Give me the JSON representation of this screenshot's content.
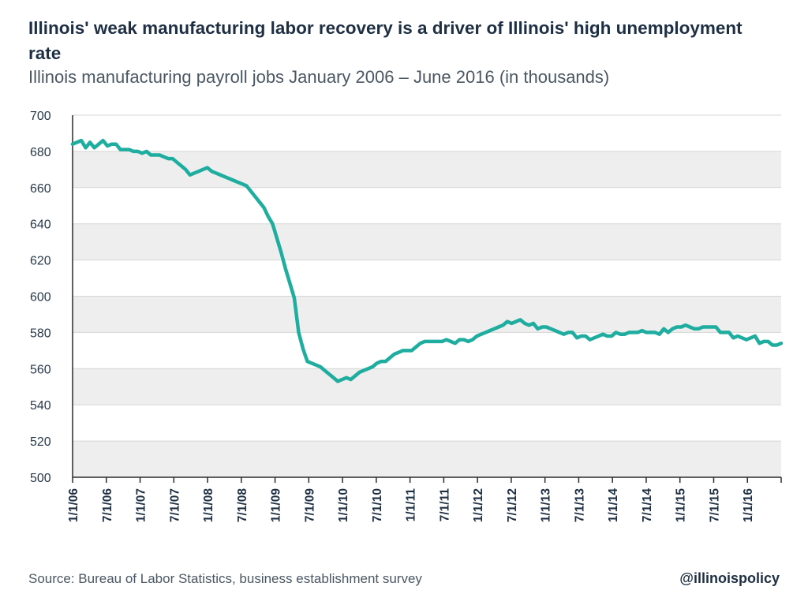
{
  "header": {
    "title": "Illinois' weak manufacturing labor recovery is a driver of Illinois' high unemployment rate",
    "subtitle": "Illinois manufacturing payroll jobs January 2006 – June 2016 (in thousands)"
  },
  "footer": {
    "source": "Source: Bureau of Labor Statistics, business establishment survey",
    "handle": "@illinoispolicy"
  },
  "colors": {
    "line": "#1fada0",
    "band": "#eeeeee",
    "axis": "#2b2b2b"
  },
  "chart_data": {
    "type": "line",
    "title": "Illinois' weak manufacturing labor recovery is a driver of Illinois' high unemployment rate",
    "subtitle": "Illinois manufacturing payroll jobs January 2006 – June 2016 (in thousands)",
    "xlabel": "",
    "ylabel": "",
    "ylim": [
      500,
      700
    ],
    "yticks": [
      500,
      520,
      540,
      560,
      580,
      600,
      620,
      640,
      660,
      680,
      700
    ],
    "xtick_labels": [
      "1/1/06",
      "7/1/06",
      "1/1/07",
      "7/1/07",
      "1/1/08",
      "7/1/08",
      "1/1/09",
      "7/1/09",
      "1/1/10",
      "7/1/10",
      "1/1/11",
      "7/1/11",
      "1/1/12",
      "7/1/12",
      "1/1/13",
      "7/1/13",
      "1/1/14",
      "7/1/14",
      "1/1/15",
      "7/1/15",
      "1/1/16"
    ],
    "grid": "alternating horizontal bands",
    "legend": "none",
    "series": [
      {
        "values": [
          684,
          685,
          686,
          682,
          685,
          682,
          684,
          686,
          683,
          684,
          684,
          681,
          681,
          681,
          680,
          680,
          679,
          680,
          678,
          678,
          678,
          677,
          676,
          676,
          674,
          672,
          670,
          667,
          668,
          669,
          670,
          671,
          669,
          668,
          667,
          666,
          665,
          664,
          663,
          662,
          661,
          658,
          655,
          652,
          649,
          644,
          640,
          632,
          624,
          615,
          607,
          599,
          580,
          571,
          564,
          563,
          562,
          561,
          559,
          557,
          555,
          553,
          554,
          555,
          554,
          556,
          558,
          559,
          560,
          561,
          563,
          564,
          564,
          566,
          568,
          569,
          570,
          570,
          570,
          572,
          574,
          575,
          575,
          575,
          575,
          575,
          576,
          575,
          574,
          576,
          576,
          575,
          576,
          578,
          579,
          580,
          581,
          582,
          583,
          584,
          586,
          585,
          586,
          587,
          585,
          584,
          585,
          582,
          583,
          583,
          582,
          581,
          580,
          579,
          580,
          580,
          577,
          578,
          578,
          576,
          577,
          578,
          579,
          578,
          578,
          580,
          579,
          579,
          580,
          580,
          580,
          581,
          580,
          580,
          580,
          579,
          582,
          580,
          582,
          583,
          583,
          584,
          583,
          582,
          582,
          583,
          583,
          583,
          583,
          580,
          580,
          580,
          577,
          578,
          577,
          576,
          577,
          578,
          574,
          575,
          575,
          573,
          573,
          574
        ]
      }
    ]
  }
}
